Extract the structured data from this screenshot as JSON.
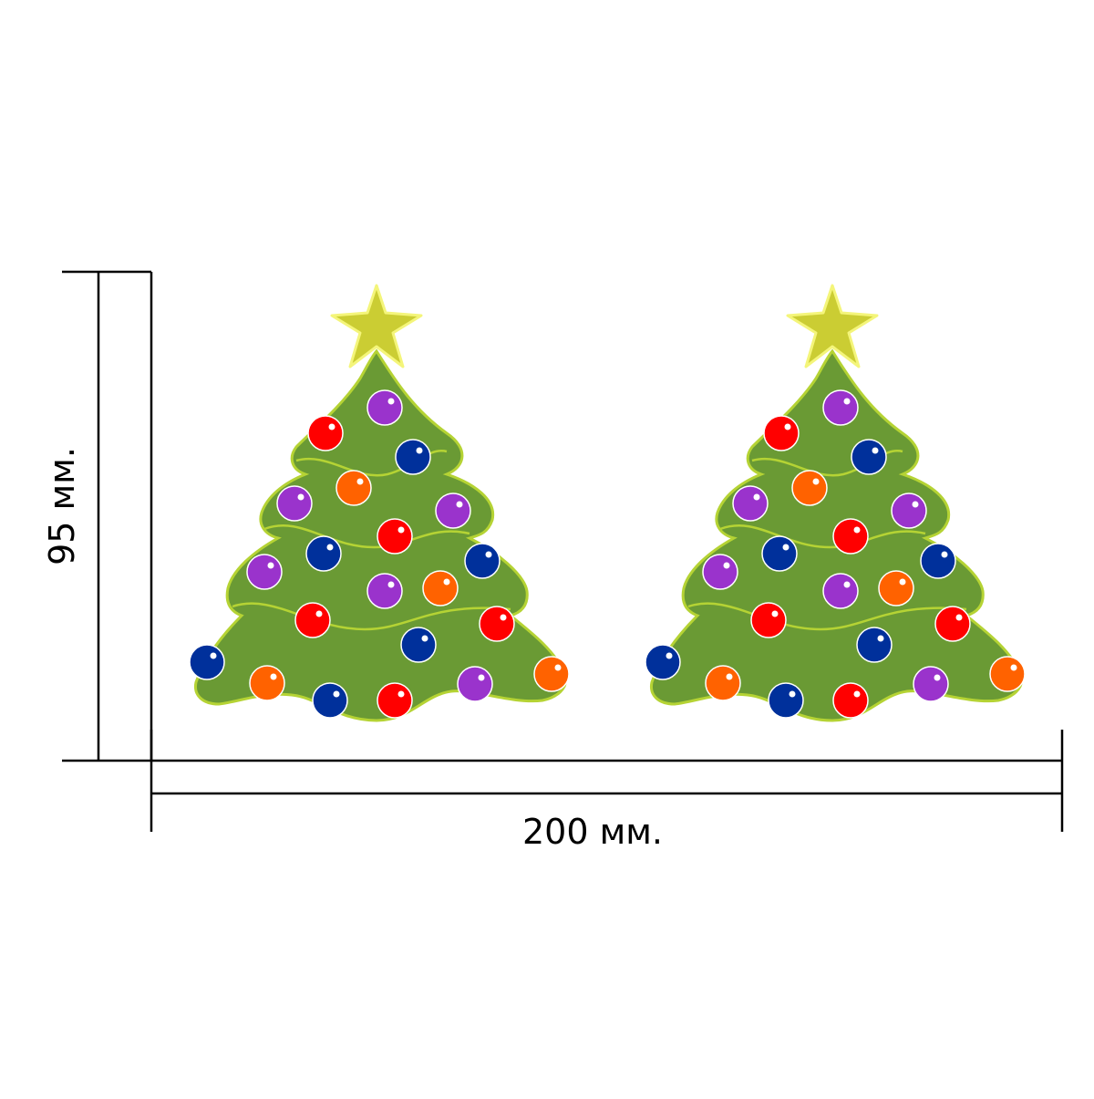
{
  "dimensions": {
    "width_label": "200 мм.",
    "height_label": "95 мм."
  },
  "colors": {
    "tree_fill": "#6a9a34",
    "tree_outline": "#b5d334",
    "garland": "#b5d334",
    "star_fill": "#cbcd33",
    "star_outline": "#f4f57a",
    "ornament_red": "#ff0000",
    "ornament_blue": "#00309b",
    "ornament_purple": "#9a33cc",
    "ornament_orange": "#ff6200",
    "dimension_line": "#000000"
  },
  "trees": [
    {
      "name": "left-tree"
    },
    {
      "name": "right-tree"
    }
  ],
  "ornaments": [
    {
      "color": "purple"
    },
    {
      "color": "red"
    },
    {
      "color": "blue"
    },
    {
      "color": "orange"
    },
    {
      "color": "purple"
    },
    {
      "color": "purple"
    },
    {
      "color": "red"
    },
    {
      "color": "blue"
    },
    {
      "color": "purple"
    },
    {
      "color": "blue"
    },
    {
      "color": "purple"
    },
    {
      "color": "orange"
    },
    {
      "color": "red"
    },
    {
      "color": "red"
    },
    {
      "color": "blue"
    },
    {
      "color": "blue"
    },
    {
      "color": "orange"
    },
    {
      "color": "orange"
    },
    {
      "color": "blue"
    },
    {
      "color": "red"
    },
    {
      "color": "purple"
    }
  ]
}
